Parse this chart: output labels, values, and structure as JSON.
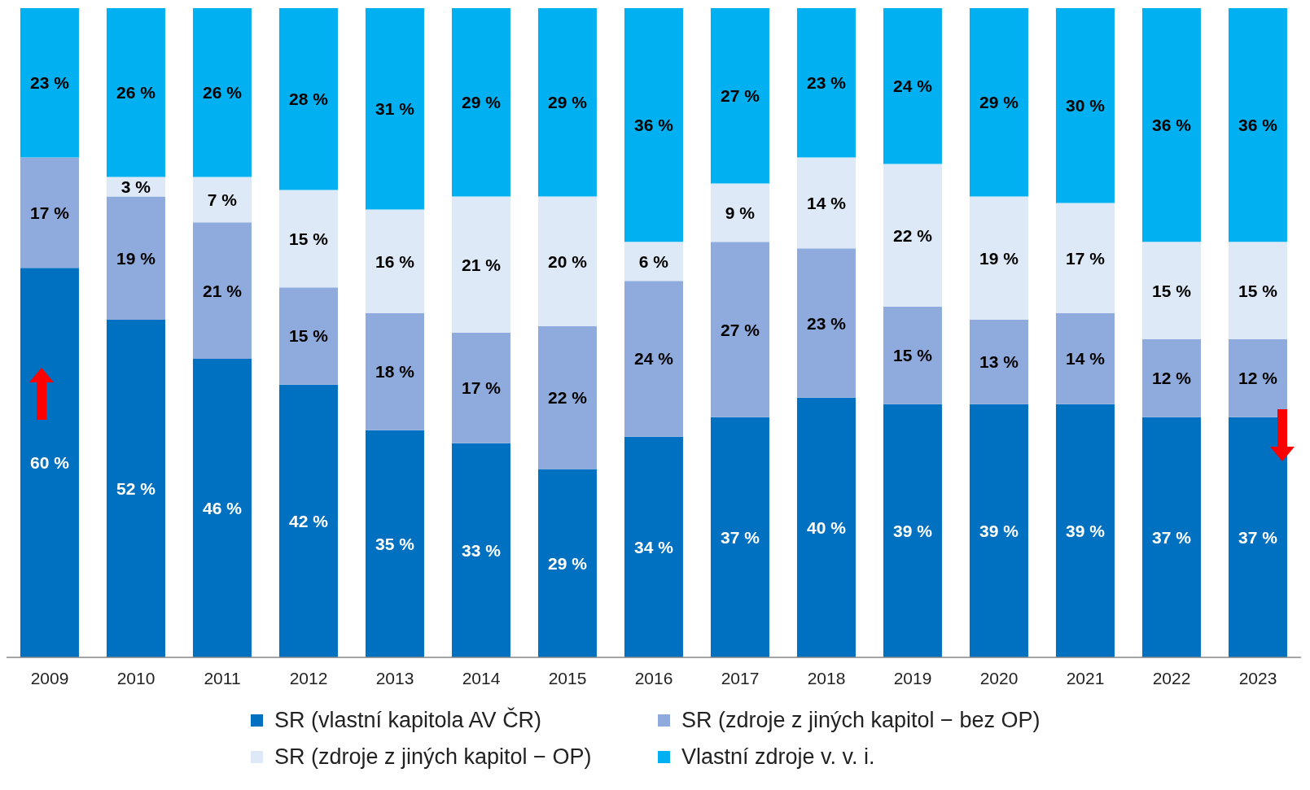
{
  "chart_data": {
    "type": "bar",
    "stacked": true,
    "legend": "bottom",
    "categories": [
      "2009",
      "2010",
      "2011",
      "2012",
      "2013",
      "2014",
      "2015",
      "2016",
      "2017",
      "2018",
      "2019",
      "2020",
      "2021",
      "2022",
      "2023"
    ],
    "series": [
      {
        "name": "SR (vlastní kapitola AV ČR)",
        "color": "#0070c0",
        "values": [
          60,
          52,
          46,
          42,
          35,
          33,
          29,
          34,
          37,
          40,
          39,
          39,
          39,
          37,
          37
        ],
        "value_labels": [
          "60 %",
          "52 %",
          "46 %",
          "42 %",
          "35 %",
          "33 %",
          "29 %",
          "34 %",
          "37 %",
          "40 %",
          "39 %",
          "39 %",
          "39 %",
          "37 %",
          "37 %"
        ]
      },
      {
        "name": "SR (zdroje z jiných kapitol − bez OP)",
        "color": "#8faadc",
        "values": [
          17,
          19,
          21,
          15,
          18,
          17,
          22,
          24,
          27,
          23,
          15,
          13,
          14,
          12,
          12
        ],
        "value_labels": [
          "17 %",
          "19 %",
          "21 %",
          "15 %",
          "18 %",
          "17 %",
          "22 %",
          "24 %",
          "27 %",
          "23 %",
          "15 %",
          "13 %",
          "14 %",
          "12 %",
          "12 %"
        ]
      },
      {
        "name": "SR (zdroje z jiných kapitol − OP)",
        "color": "#dde9f6",
        "values": [
          0,
          3,
          7,
          15,
          16,
          21,
          20,
          6,
          9,
          14,
          22,
          19,
          17,
          15,
          15
        ],
        "value_labels": [
          null,
          "3 %",
          "7 %",
          "15 %",
          "16 %",
          "21 %",
          "20 %",
          "6 %",
          "9 %",
          "14 %",
          "22 %",
          "19 %",
          "17 %",
          "15 %",
          "15 %"
        ]
      },
      {
        "name": "Vlastní zdroje v. v. i.",
        "color": "#00b0f0",
        "values": [
          23,
          26,
          26,
          28,
          31,
          29,
          29,
          36,
          27,
          23,
          24,
          29,
          30,
          36,
          36
        ],
        "value_labels": [
          "23 %",
          "26 %",
          "26 %",
          "28 %",
          "31 %",
          "29 %",
          "29 %",
          "36 %",
          "27 %",
          "23 %",
          "24 %",
          "29 %",
          "30 %",
          "36 %",
          "36 %"
        ]
      }
    ]
  }
}
